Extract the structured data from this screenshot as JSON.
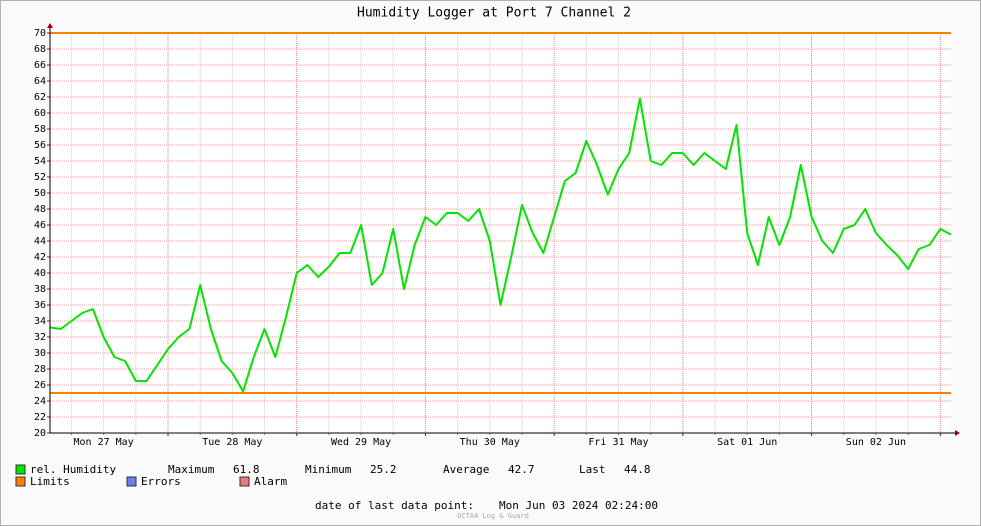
{
  "chart_data": {
    "type": "line",
    "title": "Humidity Logger at Port 7 Channel 2",
    "categories": [
      null,
      null,
      null,
      null,
      null,
      "Mon 27 May",
      null,
      null,
      null,
      null,
      null,
      null,
      null,
      null,
      null,
      null,
      null,
      "Tue 28 May",
      null,
      null,
      null,
      null,
      null,
      null,
      null,
      null,
      null,
      null,
      null,
      "Wed 29 May",
      null,
      null,
      null,
      null,
      null,
      null,
      null,
      null,
      null,
      null,
      null,
      "Thu 30 May",
      null,
      null,
      null,
      null,
      null,
      null,
      null,
      null,
      null,
      null,
      null,
      "Fri 31 May",
      null,
      null,
      null,
      null,
      null,
      null,
      null,
      null,
      null,
      null,
      null,
      "Sat 01 Jun",
      null,
      null,
      null,
      null,
      null,
      null,
      null,
      null,
      null,
      null,
      null,
      "Sun 02 Jun",
      null,
      null,
      null,
      null,
      null,
      null,
      null
    ],
    "series": [
      {
        "name": "rel. Humidity",
        "color": "#00e600",
        "values": [
          33.2,
          33,
          34,
          35,
          35.5,
          32,
          29.5,
          29,
          26.5,
          26.5,
          28.5,
          30.5,
          32,
          33,
          38.5,
          33,
          29,
          27.5,
          25.2,
          29.5,
          33,
          29.5,
          34.5,
          40,
          41,
          39.5,
          40.8,
          42.5,
          42.5,
          46,
          38.5,
          40,
          45.5,
          38,
          43.5,
          47,
          46,
          47.5,
          47.5,
          46.5,
          48,
          44,
          36,
          42,
          48.5,
          45,
          42.5,
          47,
          51.5,
          52.5,
          56.5,
          53.5,
          49.8,
          53,
          55,
          61.8,
          54,
          53.5,
          55,
          55,
          53.5,
          55,
          54,
          53,
          58.5,
          45,
          41,
          47,
          43.5,
          47,
          53.5,
          47,
          44,
          42.5,
          45.5,
          46,
          48,
          45,
          43.5,
          42.2,
          40.5,
          43,
          43.5,
          45.5,
          44.8
        ]
      }
    ],
    "limits": {
      "name": "Limits",
      "color": "#ff8000",
      "values": [
        70,
        25
      ]
    },
    "legend_extra": [
      {
        "name": "Errors",
        "color": "#6c7fe8"
      },
      {
        "name": "Alarm",
        "color": "#f07878"
      }
    ],
    "stats": [
      {
        "label": "Maximum",
        "value": 61.8
      },
      {
        "label": "Minimum",
        "value": 25.2
      },
      {
        "label": "Average",
        "value": 42.7
      },
      {
        "label": "Last",
        "value": 44.8
      }
    ],
    "ylim": [
      20,
      70
    ],
    "yticks": [
      20,
      22,
      24,
      26,
      28,
      30,
      32,
      34,
      36,
      38,
      40,
      42,
      44,
      46,
      48,
      50,
      52,
      54,
      56,
      58,
      60,
      62,
      64,
      66,
      68,
      70
    ],
    "grid": true,
    "last_point_label": "date of last data point:",
    "last_point": "Mon Jun 03 2024 02:24:00",
    "watermark": "OCTA4 Log & Guard"
  }
}
